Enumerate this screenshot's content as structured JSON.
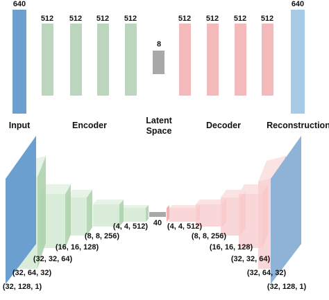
{
  "top": {
    "input_units": "640",
    "encoder_units": [
      "512",
      "512",
      "512",
      "512"
    ],
    "latent_units": "8",
    "decoder_units": [
      "512",
      "512",
      "512",
      "512"
    ],
    "output_units": "640"
  },
  "labels": {
    "input": "Input",
    "encoder": "Encoder",
    "latent_line1": "Latent",
    "latent_line2": "Space",
    "decoder": "Decoder",
    "reconstruction": "Reconstruction"
  },
  "bottom": {
    "encoder_shapes": [
      "(32, 128, 1)",
      "(32, 64, 32)",
      "(32, 32, 64)",
      "(16, 16, 128)",
      "(8, 8, 256)",
      "(4, 4, 512)"
    ],
    "latent_units": "40",
    "decoder_shapes": [
      "(4, 4, 512)",
      "(8, 8, 256)",
      "(16, 16, 128)",
      "(32, 32, 64)",
      "(32, 64, 32)",
      "(32, 128, 1)"
    ]
  },
  "colors": {
    "input": "#6a9fd0",
    "encoder": "#bcd5bf",
    "latent": "#a8a8a8",
    "decoder": "#f4b9bb",
    "output": "#a7cbe6"
  }
}
